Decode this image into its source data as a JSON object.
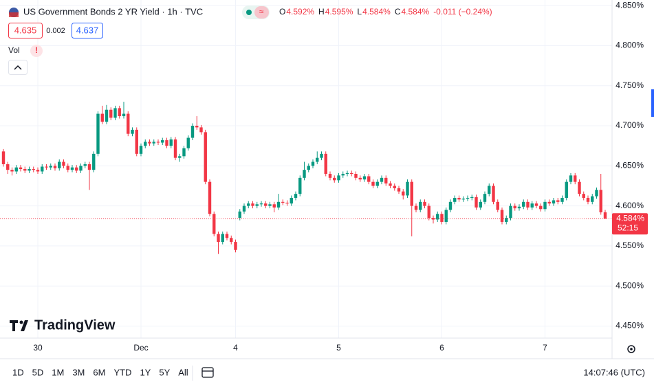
{
  "header": {
    "title": "US Government Bonds 2 YR Yield · 1h · TVC",
    "ohlc": [
      {
        "label": "O",
        "value": "4.592%"
      },
      {
        "label": "H",
        "value": "4.595%"
      },
      {
        "label": "L",
        "value": "4.584%"
      },
      {
        "label": "C",
        "value": "4.584%"
      }
    ],
    "change": "-0.011 (−0.24%)",
    "bid": "4.635",
    "spread": "0.002",
    "ask": "4.637",
    "volume_label": "Vol",
    "volume_alert": "!"
  },
  "logo": "TradingView",
  "toolbar": {
    "ranges": [
      "1D",
      "5D",
      "1M",
      "3M",
      "6M",
      "YTD",
      "1Y",
      "5Y",
      "All"
    ],
    "clock": "14:07:46 (UTC)"
  },
  "chart_data": {
    "type": "candlestick",
    "up_color": "#089981",
    "down_color": "#f23645",
    "grid": true,
    "price_tag": "4.584%",
    "countdown": "52:15",
    "categories": [
      null,
      null,
      null,
      null,
      null,
      null,
      null,
      null,
      "30",
      null,
      null,
      null,
      null,
      null,
      null,
      null,
      null,
      null,
      null,
      null,
      null,
      null,
      null,
      null,
      null,
      null,
      null,
      null,
      null,
      null,
      null,
      null,
      "Dec",
      null,
      null,
      null,
      null,
      null,
      null,
      null,
      null,
      null,
      null,
      null,
      null,
      null,
      null,
      null,
      null,
      null,
      null,
      null,
      null,
      null,
      "4",
      null,
      null,
      null,
      null,
      null,
      null,
      null,
      null,
      null,
      null,
      null,
      null,
      null,
      null,
      null,
      null,
      null,
      null,
      null,
      null,
      null,
      null,
      null,
      "5",
      null,
      null,
      null,
      null,
      null,
      null,
      null,
      null,
      null,
      null,
      null,
      null,
      null,
      null,
      null,
      null,
      null,
      null,
      null,
      null,
      null,
      null,
      null,
      "6",
      null,
      null,
      null,
      null,
      null,
      null,
      null,
      null,
      null,
      null,
      null,
      null,
      null,
      null,
      null,
      null,
      null,
      null,
      null,
      null,
      null,
      null,
      null,
      "7",
      null,
      null,
      null,
      null,
      null,
      null,
      null,
      null,
      null,
      null,
      null,
      null,
      null,
      null
    ],
    "ohlc": [
      [
        4.668,
        4.671,
        4.649,
        4.652
      ],
      [
        4.652,
        4.655,
        4.64,
        4.645
      ],
      [
        4.645,
        4.648,
        4.638,
        4.643
      ],
      [
        4.643,
        4.651,
        4.64,
        4.648
      ],
      [
        4.648,
        4.651,
        4.643,
        4.646
      ],
      [
        4.646,
        4.649,
        4.641,
        4.644
      ],
      [
        4.644,
        4.649,
        4.641,
        4.646
      ],
      [
        4.646,
        4.649,
        4.642,
        4.645
      ],
      [
        4.645,
        4.648,
        4.64,
        4.643
      ],
      [
        4.643,
        4.652,
        4.64,
        4.649
      ],
      [
        4.649,
        4.652,
        4.645,
        4.648
      ],
      [
        4.648,
        4.653,
        4.645,
        4.65
      ],
      [
        4.65,
        4.653,
        4.644,
        4.647
      ],
      [
        4.647,
        4.658,
        4.644,
        4.655
      ],
      [
        4.655,
        4.658,
        4.647,
        4.65
      ],
      [
        4.65,
        4.653,
        4.642,
        4.645
      ],
      [
        4.645,
        4.651,
        4.642,
        4.648
      ],
      [
        4.648,
        4.651,
        4.641,
        4.644
      ],
      [
        4.644,
        4.653,
        4.641,
        4.65
      ],
      [
        4.65,
        4.655,
        4.647,
        4.652
      ],
      [
        4.652,
        4.655,
        4.62,
        4.645
      ],
      [
        4.645,
        4.668,
        4.642,
        4.665
      ],
      [
        4.665,
        4.718,
        4.662,
        4.715
      ],
      [
        4.715,
        4.725,
        4.702,
        4.705
      ],
      [
        4.705,
        4.726,
        4.702,
        4.72
      ],
      [
        4.72,
        4.723,
        4.707,
        4.71
      ],
      [
        4.71,
        4.725,
        4.707,
        4.722
      ],
      [
        4.722,
        4.725,
        4.709,
        4.712
      ],
      [
        4.712,
        4.73,
        4.709,
        4.715
      ],
      [
        4.715,
        4.718,
        4.687,
        4.69
      ],
      [
        4.69,
        4.698,
        4.687,
        4.695
      ],
      [
        4.695,
        4.698,
        4.662,
        4.665
      ],
      [
        4.665,
        4.678,
        4.662,
        4.675
      ],
      [
        4.675,
        4.683,
        4.672,
        4.68
      ],
      [
        4.68,
        4.683,
        4.675,
        4.678
      ],
      [
        4.678,
        4.683,
        4.675,
        4.68
      ],
      [
        4.68,
        4.683,
        4.676,
        4.679
      ],
      [
        4.679,
        4.685,
        4.676,
        4.682
      ],
      [
        4.682,
        4.685,
        4.672,
        4.675
      ],
      [
        4.675,
        4.686,
        4.672,
        4.683
      ],
      [
        4.683,
        4.686,
        4.657,
        4.66
      ],
      [
        4.66,
        4.665,
        4.655,
        4.662
      ],
      [
        4.662,
        4.675,
        4.659,
        4.672
      ],
      [
        4.672,
        4.688,
        4.669,
        4.685
      ],
      [
        4.685,
        4.703,
        4.682,
        4.7
      ],
      [
        4.7,
        4.712,
        4.695,
        4.698
      ],
      [
        4.698,
        4.701,
        4.689,
        4.692
      ],
      [
        4.692,
        4.695,
        4.627,
        4.63
      ],
      [
        4.63,
        4.633,
        4.587,
        4.59
      ],
      [
        4.59,
        4.593,
        4.562,
        4.565
      ],
      [
        4.565,
        4.568,
        4.54,
        4.555
      ],
      [
        4.555,
        4.568,
        4.552,
        4.565
      ],
      [
        4.565,
        4.568,
        4.557,
        4.56
      ],
      [
        4.56,
        4.563,
        4.552,
        4.555
      ],
      [
        4.555,
        4.558,
        4.542,
        4.545
      ],
      [
        4.585,
        4.596,
        4.582,
        4.593
      ],
      [
        4.593,
        4.603,
        4.59,
        4.6
      ],
      [
        4.6,
        4.606,
        4.597,
        4.603
      ],
      [
        4.603,
        4.606,
        4.597,
        4.6
      ],
      [
        4.6,
        4.605,
        4.597,
        4.602
      ],
      [
        4.602,
        4.606,
        4.599,
        4.603
      ],
      [
        4.603,
        4.606,
        4.597,
        4.6
      ],
      [
        4.6,
        4.605,
        4.597,
        4.602
      ],
      [
        4.602,
        4.605,
        4.592,
        4.598
      ],
      [
        4.598,
        4.615,
        4.595,
        4.605
      ],
      [
        4.605,
        4.608,
        4.601,
        4.604
      ],
      [
        4.604,
        4.607,
        4.6,
        4.603
      ],
      [
        4.603,
        4.613,
        4.6,
        4.61
      ],
      [
        4.61,
        4.618,
        4.607,
        4.615
      ],
      [
        4.615,
        4.638,
        4.612,
        4.635
      ],
      [
        4.635,
        4.655,
        4.632,
        4.645
      ],
      [
        4.645,
        4.653,
        4.642,
        4.65
      ],
      [
        4.65,
        4.658,
        4.647,
        4.655
      ],
      [
        4.655,
        4.668,
        4.652,
        4.66
      ],
      [
        4.66,
        4.668,
        4.657,
        4.665
      ],
      [
        4.665,
        4.668,
        4.637,
        4.64
      ],
      [
        4.64,
        4.643,
        4.632,
        4.635
      ],
      [
        4.635,
        4.638,
        4.629,
        4.632
      ],
      [
        4.632,
        4.641,
        4.629,
        4.638
      ],
      [
        4.638,
        4.643,
        4.635,
        4.64
      ],
      [
        4.64,
        4.644,
        4.637,
        4.641
      ],
      [
        4.641,
        4.644,
        4.637,
        4.64
      ],
      [
        4.64,
        4.643,
        4.632,
        4.635
      ],
      [
        4.635,
        4.638,
        4.63,
        4.633
      ],
      [
        4.633,
        4.64,
        4.63,
        4.637
      ],
      [
        4.637,
        4.64,
        4.627,
        4.63
      ],
      [
        4.63,
        4.633,
        4.622,
        4.625
      ],
      [
        4.625,
        4.633,
        4.622,
        4.63
      ],
      [
        4.63,
        4.638,
        4.627,
        4.635
      ],
      [
        4.635,
        4.638,
        4.625,
        4.628
      ],
      [
        4.628,
        4.631,
        4.622,
        4.625
      ],
      [
        4.625,
        4.628,
        4.619,
        4.622
      ],
      [
        4.622,
        4.625,
        4.615,
        4.618
      ],
      [
        4.618,
        4.621,
        4.608,
        4.613
      ],
      [
        4.613,
        4.633,
        4.61,
        4.63
      ],
      [
        4.63,
        4.633,
        4.562,
        4.6
      ],
      [
        4.6,
        4.603,
        4.592,
        4.595
      ],
      [
        4.595,
        4.608,
        4.592,
        4.605
      ],
      [
        4.605,
        4.608,
        4.597,
        4.6
      ],
      [
        4.6,
        4.603,
        4.582,
        4.585
      ],
      [
        4.585,
        4.588,
        4.578,
        4.583
      ],
      [
        4.583,
        4.593,
        4.58,
        4.59
      ],
      [
        4.59,
        4.593,
        4.577,
        4.58
      ],
      [
        4.58,
        4.598,
        4.577,
        4.595
      ],
      [
        4.595,
        4.608,
        4.592,
        4.605
      ],
      [
        4.605,
        4.613,
        4.602,
        4.61
      ],
      [
        4.61,
        4.613,
        4.605,
        4.608
      ],
      [
        4.608,
        4.612,
        4.605,
        4.609
      ],
      [
        4.609,
        4.613,
        4.606,
        4.61
      ],
      [
        4.61,
        4.614,
        4.607,
        4.611
      ],
      [
        4.611,
        4.614,
        4.595,
        4.598
      ],
      [
        4.598,
        4.608,
        4.595,
        4.605
      ],
      [
        4.605,
        4.618,
        4.602,
        4.615
      ],
      [
        4.615,
        4.628,
        4.612,
        4.625
      ],
      [
        4.625,
        4.628,
        4.602,
        4.605
      ],
      [
        4.605,
        4.608,
        4.592,
        4.595
      ],
      [
        4.595,
        4.598,
        4.577,
        4.58
      ],
      [
        4.58,
        4.588,
        4.577,
        4.585
      ],
      [
        4.585,
        4.603,
        4.582,
        4.6
      ],
      [
        4.6,
        4.603,
        4.594,
        4.597
      ],
      [
        4.597,
        4.602,
        4.594,
        4.599
      ],
      [
        4.599,
        4.608,
        4.596,
        4.605
      ],
      [
        4.605,
        4.608,
        4.595,
        4.598
      ],
      [
        4.598,
        4.606,
        4.595,
        4.603
      ],
      [
        4.603,
        4.606,
        4.597,
        4.6
      ],
      [
        4.6,
        4.603,
        4.593,
        4.596
      ],
      [
        4.596,
        4.608,
        4.593,
        4.605
      ],
      [
        4.605,
        4.608,
        4.6,
        4.603
      ],
      [
        4.603,
        4.61,
        4.6,
        4.607
      ],
      [
        4.607,
        4.61,
        4.602,
        4.605
      ],
      [
        4.605,
        4.613,
        4.602,
        4.61
      ],
      [
        4.61,
        4.633,
        4.607,
        4.63
      ],
      [
        4.63,
        4.641,
        4.627,
        4.638
      ],
      [
        4.638,
        4.641,
        4.627,
        4.63
      ],
      [
        4.63,
        4.633,
        4.612,
        4.615
      ],
      [
        4.615,
        4.618,
        4.607,
        4.61
      ],
      [
        4.61,
        4.613,
        4.602,
        4.605
      ],
      [
        4.605,
        4.615,
        4.602,
        4.612
      ],
      [
        4.612,
        4.623,
        4.609,
        4.62
      ],
      [
        4.62,
        4.64,
        4.589,
        4.592
      ],
      [
        4.592,
        4.595,
        4.584,
        4.584
      ]
    ],
    "ylim": [
      4.435,
      4.857
    ],
    "yticks": [
      {
        "value": 4.45,
        "label": "4.450%"
      },
      {
        "value": 4.5,
        "label": "4.500%"
      },
      {
        "value": 4.55,
        "label": "4.550%"
      },
      {
        "value": 4.6,
        "label": "4.600%"
      },
      {
        "value": 4.65,
        "label": "4.650%"
      },
      {
        "value": 4.7,
        "label": "4.700%"
      },
      {
        "value": 4.75,
        "label": "4.750%"
      },
      {
        "value": 4.8,
        "label": "4.800%"
      },
      {
        "value": 4.85,
        "label": "4.850%"
      }
    ]
  }
}
